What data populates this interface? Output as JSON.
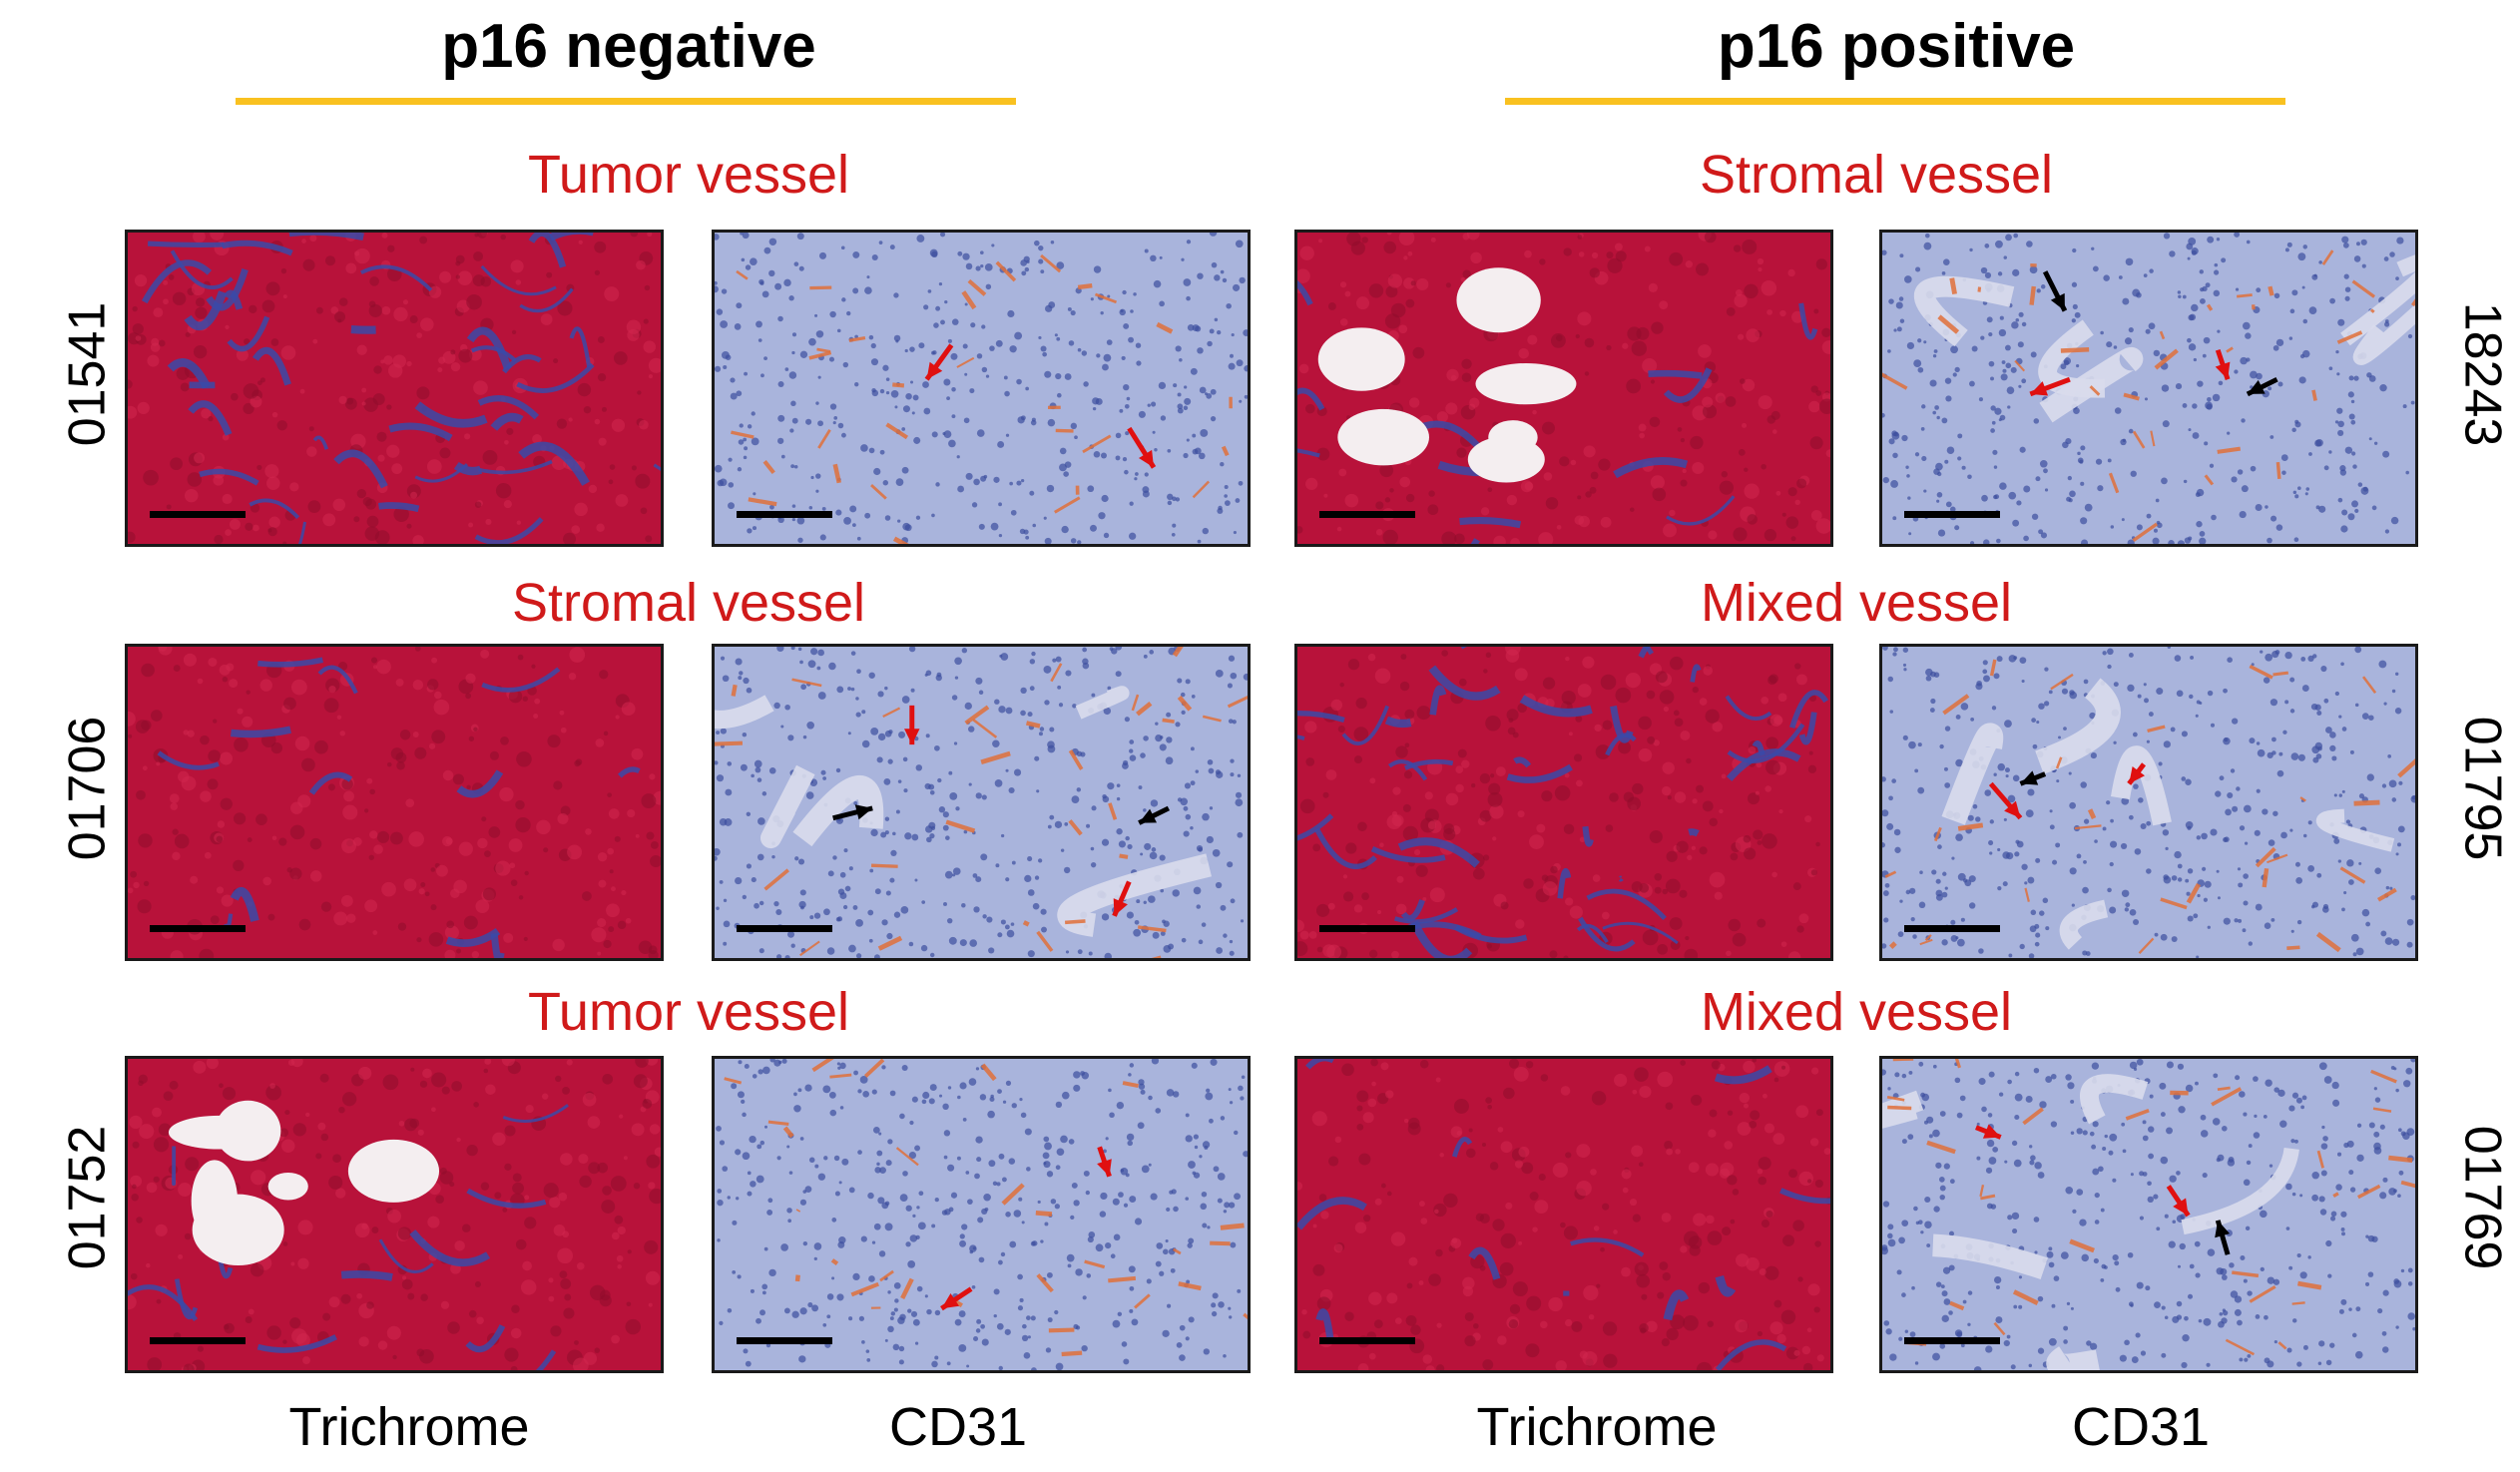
{
  "groups": [
    {
      "title": "p16 negative"
    },
    {
      "title": "p16 positive"
    }
  ],
  "rows": [
    {
      "left_id": "01541",
      "left_condition": "Tumor vessel",
      "right_id": "18243",
      "right_condition": "Stromal vessel"
    },
    {
      "left_id": "01706",
      "left_condition": "Stromal vessel",
      "right_id": "01795",
      "right_condition": "Mixed vessel"
    },
    {
      "left_id": "01752",
      "left_condition": "Tumor vessel",
      "right_id": "01769",
      "right_condition": "Mixed vessel"
    }
  ],
  "column_labels": [
    "Trichrome",
    "CD31",
    "Trichrome",
    "CD31"
  ],
  "colors": {
    "rule": "#f9c120",
    "condition_text": "#d01a1a",
    "trichrome_red": "#b8123a",
    "collagen_blue": "#3a4aa8",
    "cd31_background": "#a9b4dc",
    "cd31_stain": "#e0703a",
    "arrow_red": "#e01010",
    "arrow_black": "#000000"
  }
}
